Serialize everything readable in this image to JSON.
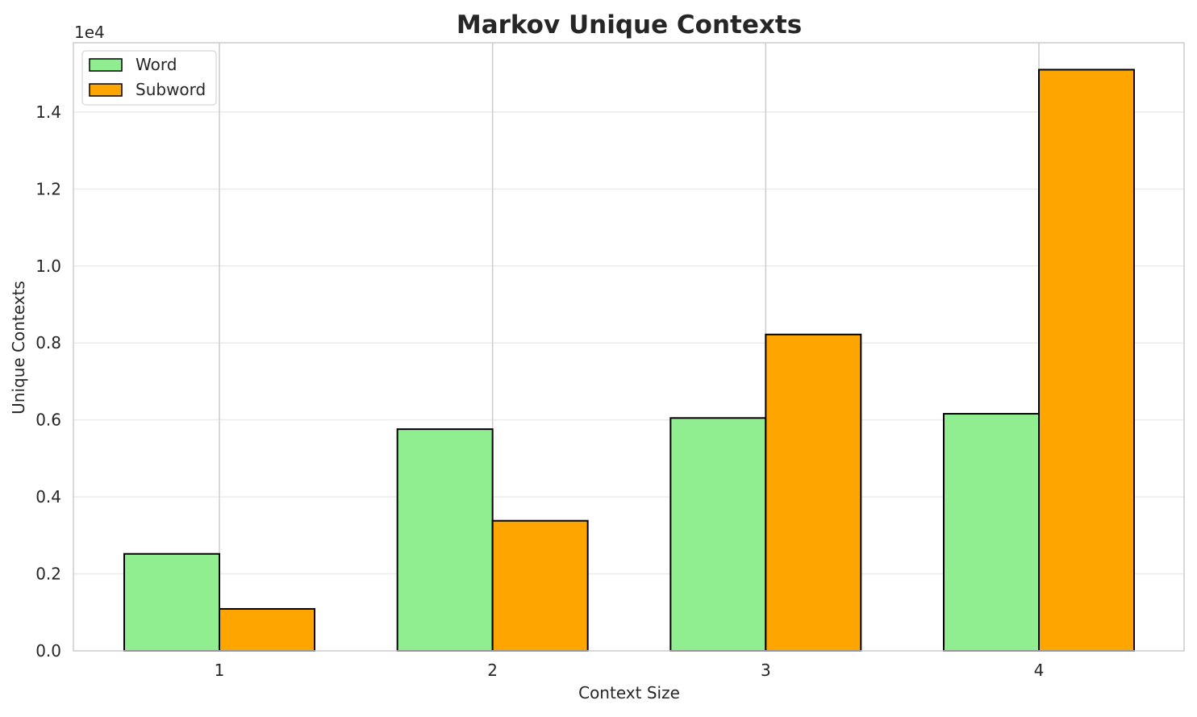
{
  "chart_data": {
    "type": "bar",
    "title": "Markov Unique Contexts",
    "xlabel": "Context Size",
    "ylabel": "Unique Contexts",
    "categories": [
      "1",
      "2",
      "3",
      "4"
    ],
    "series": [
      {
        "name": "Word",
        "color": "#90ee90",
        "values": [
          2520,
          5760,
          6050,
          6160
        ]
      },
      {
        "name": "Subword",
        "color": "#ffa500",
        "values": [
          1090,
          3380,
          8220,
          15100
        ]
      }
    ],
    "ylim": [
      0,
      15800
    ],
    "yticks": [
      0,
      2000,
      4000,
      6000,
      8000,
      10000,
      12000,
      14000
    ],
    "ytick_labels": [
      "0.0",
      "0.2",
      "0.4",
      "0.6",
      "0.8",
      "1.0",
      "1.2",
      "1.4"
    ],
    "y_offset_label": "1e4",
    "grid": true,
    "legend_position": "upper-left"
  }
}
